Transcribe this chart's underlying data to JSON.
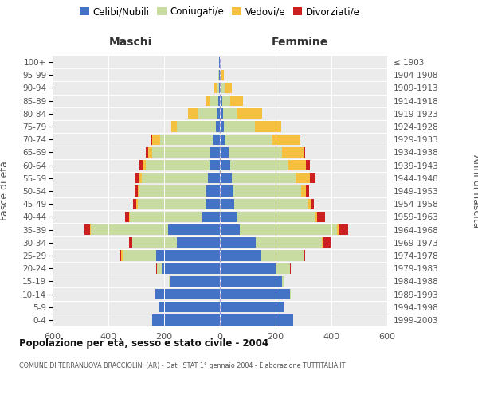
{
  "age_groups": [
    "0-4",
    "5-9",
    "10-14",
    "15-19",
    "20-24",
    "25-29",
    "30-34",
    "35-39",
    "40-44",
    "45-49",
    "50-54",
    "55-59",
    "60-64",
    "65-69",
    "70-74",
    "75-79",
    "80-84",
    "85-89",
    "90-94",
    "95-99",
    "100+"
  ],
  "birth_years": [
    "1999-2003",
    "1994-1998",
    "1989-1993",
    "1984-1988",
    "1979-1983",
    "1974-1978",
    "1969-1973",
    "1964-1968",
    "1959-1963",
    "1954-1958",
    "1949-1953",
    "1944-1948",
    "1939-1943",
    "1934-1938",
    "1929-1933",
    "1924-1928",
    "1919-1923",
    "1914-1918",
    "1909-1913",
    "1904-1908",
    "≤ 1903"
  ],
  "male_celibi": [
    242,
    218,
    232,
    178,
    210,
    230,
    155,
    185,
    62,
    52,
    50,
    42,
    38,
    35,
    25,
    15,
    8,
    5,
    4,
    2,
    2
  ],
  "male_coniugati": [
    0,
    0,
    0,
    5,
    15,
    120,
    158,
    278,
    262,
    242,
    238,
    238,
    228,
    208,
    190,
    138,
    68,
    28,
    8,
    3,
    1
  ],
  "male_vedovi": [
    0,
    0,
    0,
    0,
    2,
    5,
    2,
    3,
    3,
    5,
    5,
    8,
    10,
    14,
    28,
    22,
    38,
    18,
    8,
    2,
    0
  ],
  "male_divorziati": [
    0,
    0,
    0,
    0,
    2,
    5,
    10,
    20,
    12,
    12,
    12,
    15,
    14,
    10,
    2,
    0,
    0,
    0,
    0,
    0,
    0
  ],
  "female_nubili": [
    262,
    228,
    252,
    222,
    202,
    148,
    128,
    72,
    62,
    52,
    48,
    42,
    38,
    30,
    20,
    15,
    10,
    8,
    4,
    2,
    2
  ],
  "female_coniugate": [
    0,
    0,
    2,
    10,
    48,
    152,
    238,
    348,
    278,
    262,
    242,
    232,
    208,
    192,
    168,
    112,
    52,
    28,
    14,
    4,
    2
  ],
  "female_vedove": [
    0,
    0,
    0,
    0,
    2,
    2,
    4,
    6,
    8,
    14,
    18,
    48,
    62,
    78,
    98,
    92,
    88,
    48,
    24,
    8,
    2
  ],
  "female_divorziate": [
    0,
    0,
    0,
    0,
    2,
    5,
    28,
    35,
    30,
    10,
    12,
    20,
    15,
    5,
    2,
    0,
    0,
    0,
    0,
    0,
    0
  ],
  "color_celibi": "#4472C4",
  "color_coniugati": "#c8dba0",
  "color_vedovi": "#f5c040",
  "color_divorziati": "#cc2020",
  "title": "Popolazione per età, sesso e stato civile - 2004",
  "subtitle": "COMUNE DI TERRANUOVA BRACCIOLINI (AR) - Dati ISTAT 1° gennaio 2004 - Elaborazione TUTTITALIA.IT",
  "label_maschi": "Maschi",
  "label_femmine": "Femmine",
  "label_fasce": "Fasce di età",
  "label_anni": "Anni di nascita",
  "legend_labels": [
    "Celibi/Nubili",
    "Coniugati/e",
    "Vedovi/e",
    "Divorziati/e"
  ],
  "xlim": 600
}
